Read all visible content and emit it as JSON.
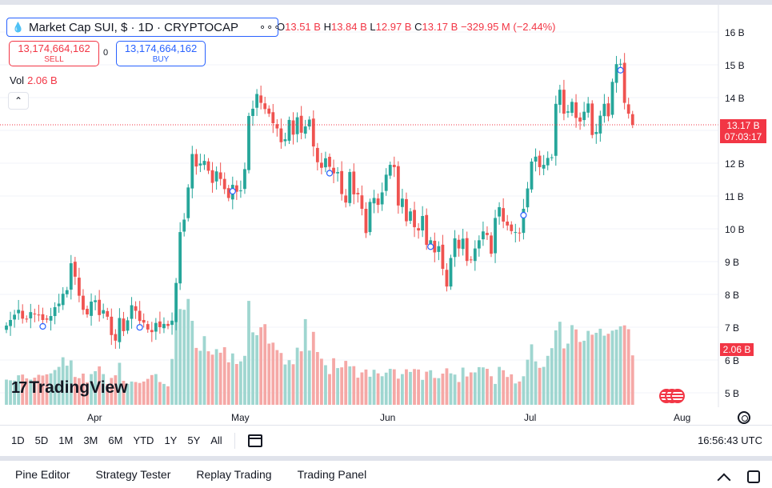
{
  "header": {
    "symbol": "Market Cap SUI, $ · 1D · CRYPTOCAP",
    "more_icon": "ellipsis-icon",
    "ohlc": {
      "o_label": "O",
      "o_value": "13.51 B",
      "h_label": "H",
      "h_value": "13.84 B",
      "l_label": "L",
      "l_value": "12.97 B",
      "c_label": "C",
      "c_value": "13.17 B",
      "change": "−329.95 M (−2.44%)"
    }
  },
  "trade": {
    "sell_price": "13,174,664,162",
    "sell_label": "SELL",
    "spread": "0",
    "buy_price": "13,174,664,162",
    "buy_label": "BUY"
  },
  "volume": {
    "label": "Vol",
    "value": "2.06 B"
  },
  "watermark": "TradingView",
  "price_axis": {
    "labels": [
      "16 B",
      "15 B",
      "14 B",
      "13.17 B",
      "12 B",
      "11 B",
      "10 B",
      "9 B",
      "8 B",
      "7 B",
      "6 B",
      "5 B"
    ],
    "current_price": "13.17 B",
    "countdown": "07:03:17",
    "volume_tag": "2.06 B"
  },
  "time_axis": {
    "labels": [
      "Apr",
      "May",
      "Jun",
      "Jul",
      "Aug"
    ]
  },
  "range_bar": {
    "ranges": [
      "1D",
      "5D",
      "1M",
      "3M",
      "6M",
      "YTD",
      "1Y",
      "5Y",
      "All"
    ],
    "clock": "16:56:43 UTC"
  },
  "bottom_panel": {
    "tabs": [
      "Pine Editor",
      "Strategy Tester",
      "Replay Trading",
      "Trading Panel"
    ]
  },
  "colors": {
    "up": "#26a69a",
    "down": "#ef5350",
    "up_volume": "#9fd6d0",
    "down_volume": "#f5a8a6",
    "accent": "#2962ff",
    "price_line": "#f23645"
  },
  "chart_data": {
    "type": "candlestick",
    "title": "Market Cap SUI, $ · 1D · CRYPTOCAP",
    "ylabel": "",
    "xlabel": "",
    "ylim": [
      4.8,
      16.2
    ],
    "unit": "B",
    "last_close": 13.17,
    "last_volume": "2.06 B",
    "x_ticks": [
      "Apr",
      "May",
      "Jun",
      "Jul",
      "Aug"
    ],
    "closes": [
      7.05,
      7.22,
      7.38,
      7.53,
      7.26,
      7.24,
      7.46,
      7.4,
      7.38,
      7.22,
      7.23,
      7.34,
      7.61,
      7.72,
      8.02,
      8.13,
      8.95,
      8.54,
      7.96,
      7.53,
      7.39,
      7.78,
      7.82,
      7.37,
      7.52,
      7.32,
      6.76,
      6.59,
      7.28,
      6.88,
      7.21,
      7.67,
      7.5,
      7.19,
      7.14,
      6.93,
      6.85,
      7.13,
      7.0,
      7.1,
      7.04,
      7.2,
      8.35,
      9.9,
      10.28,
      11.26,
      12.28,
      11.9,
      11.99,
      12.07,
      11.77,
      11.4,
      11.75,
      11.52,
      11.21,
      10.94,
      11.34,
      11.13,
      11.17,
      11.82,
      13.44,
      13.66,
      14.11,
      13.84,
      13.65,
      13.51,
      13.22,
      13.06,
      12.64,
      12.73,
      13.32,
      12.87,
      13.4,
      12.93,
      13.12,
      13.33,
      12.51,
      12.03,
      11.86,
      12.15,
      11.89,
      11.69,
      11.73,
      11.06,
      10.8,
      11.73,
      11.05,
      11.05,
      10.61,
      9.87,
      10.82,
      10.94,
      10.73,
      11.11,
      11.65,
      11.95,
      11.88,
      10.71,
      10.92,
      10.23,
      10.53,
      10.05,
      9.95,
      10.39,
      9.51,
      9.65,
      9.28,
      9.47,
      8.78,
      8.24,
      9.11,
      9.71,
      9.4,
      9.7,
      9.02,
      9.05,
      9.4,
      9.65,
      9.92,
      9.81,
      9.24,
      10.33,
      10.66,
      10.22,
      10.1,
      9.93,
      9.9,
      9.86,
      10.61,
      11.23,
      12.05,
      12.2,
      11.88,
      11.95,
      12.16,
      12.18,
      13.81,
      14.24,
      13.51,
      13.58,
      13.87,
      13.38,
      13.27,
      13.57,
      13.82,
      12.86,
      12.95,
      13.45,
      13.81,
      13.43,
      14.48,
      15.02,
      15.03,
      13.84,
      13.51,
      13.17
    ],
    "volumes": [
      1.05,
      1.02,
      1.01,
      1.23,
      1.26,
      1.1,
      1.05,
      1.13,
      1.25,
      1.22,
      1.27,
      1.31,
      1.45,
      1.58,
      1.98,
      1.63,
      1.85,
      1.16,
      1.11,
      1.3,
      0.94,
      1.28,
      1.4,
      1.6,
      1.28,
      0.87,
      1.12,
      1.23,
      1.75,
      1.0,
      0.87,
      0.97,
      0.95,
      0.91,
      0.97,
      1.08,
      1.24,
      1.28,
      0.95,
      0.87,
      0.77,
      1.91,
      3.81,
      3.99,
      3.96,
      4.41,
      3.5,
      2.37,
      2.25,
      2.86,
      2.23,
      2.09,
      2.32,
      2.17,
      2.4,
      1.77,
      2.14,
      1.7,
      1.81,
      2.04,
      4.33,
      3.02,
      2.9,
      3.23,
      3.36,
      2.55,
      2.59,
      2.28,
      2.16,
      1.68,
      1.86,
      1.69,
      2.38,
      2.23,
      3.57,
      2.26,
      3.04,
      2.2,
      1.92,
      1.65,
      1.28,
      1.94,
      1.53,
      1.56,
      1.83,
      1.6,
      1.61,
      1.13,
      1.35,
      1.47,
      1.17,
      1.46,
      1.31,
      1.19,
      1.34,
      1.5,
      1.48,
      1.09,
      1.28,
      1.48,
      1.37,
      1.49,
      1.47,
      1.04,
      1.38,
      1.44,
      1.12,
      1.11,
      1.3,
      1.52,
      1.31,
      1.26,
      0.95,
      1.55,
      1.18,
      1.35,
      1.35,
      1.57,
      1.56,
      1.5,
      1.19,
      0.87,
      1.58,
      1.44,
      1.16,
      1.27,
      0.89,
      0.97,
      1.19,
      1.88,
      2.52,
      1.81,
      1.54,
      1.58,
      2.04,
      2.36,
      3.1,
      3.46,
      2.35,
      2.55,
      3.32,
      3.14,
      2.62,
      2.67,
      3.08,
      2.92,
      3.0,
      3.17,
      2.88,
      2.96,
      3.09,
      3.13,
      3.27,
      3.31,
      3.15,
      2.06
    ]
  }
}
